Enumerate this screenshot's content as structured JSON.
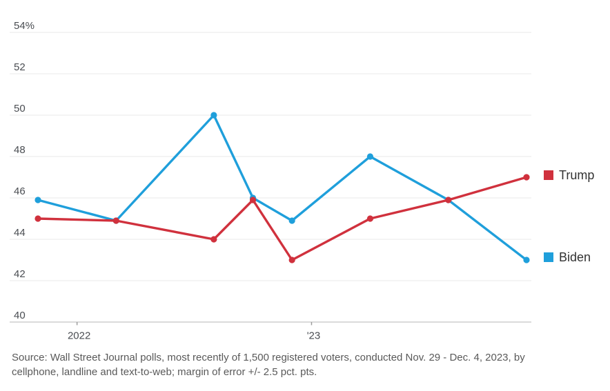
{
  "chart_data": {
    "type": "line",
    "title": "",
    "xlabel": "",
    "ylabel": "",
    "x_dates": [
      "Nov. 2021",
      "March 2022",
      "Aug. 2022",
      "Oct. 2022",
      "Dec. 2022",
      "April 2023",
      "Aug. 2023",
      "Dec. 2023"
    ],
    "x_month_offsets": [
      0,
      4,
      9,
      11,
      13,
      17,
      21,
      25
    ],
    "series": [
      {
        "name": "Biden",
        "color": "#1f9fdb",
        "values": [
          45.9,
          44.9,
          50.0,
          46.0,
          44.9,
          48.0,
          45.9,
          43.0
        ]
      },
      {
        "name": "Trump",
        "color": "#d0313d",
        "values": [
          45.0,
          44.9,
          44.0,
          45.9,
          43.0,
          45.0,
          45.9,
          47.0
        ]
      }
    ],
    "ylim": [
      40,
      54
    ],
    "yticks": [
      {
        "value": 54,
        "label": "54%"
      },
      {
        "value": 52,
        "label": "52"
      },
      {
        "value": 50,
        "label": "50"
      },
      {
        "value": 48,
        "label": "48"
      },
      {
        "value": 46,
        "label": "46"
      },
      {
        "value": 44,
        "label": "44"
      },
      {
        "value": 42,
        "label": "42"
      },
      {
        "value": 40,
        "label": "40"
      }
    ],
    "xticks": [
      {
        "label": "2022",
        "month_offset": 2
      },
      {
        "label": "'23",
        "month_offset": 14
      }
    ],
    "grid": "horizontal",
    "legend_position": "right"
  },
  "legend": {
    "items": [
      {
        "label": "Trump",
        "color": "#d0313d"
      },
      {
        "label": "Biden",
        "color": "#1f9fdb"
      }
    ]
  },
  "source": {
    "line1": "Source: Wall Street Journal polls, most recently of 1,500 registered voters, conducted Nov. 29 - Dec. 4, 2023, by",
    "line2": "cellphone, landline and text-to-web; margin of error +/- 2.5 pct. pts."
  }
}
